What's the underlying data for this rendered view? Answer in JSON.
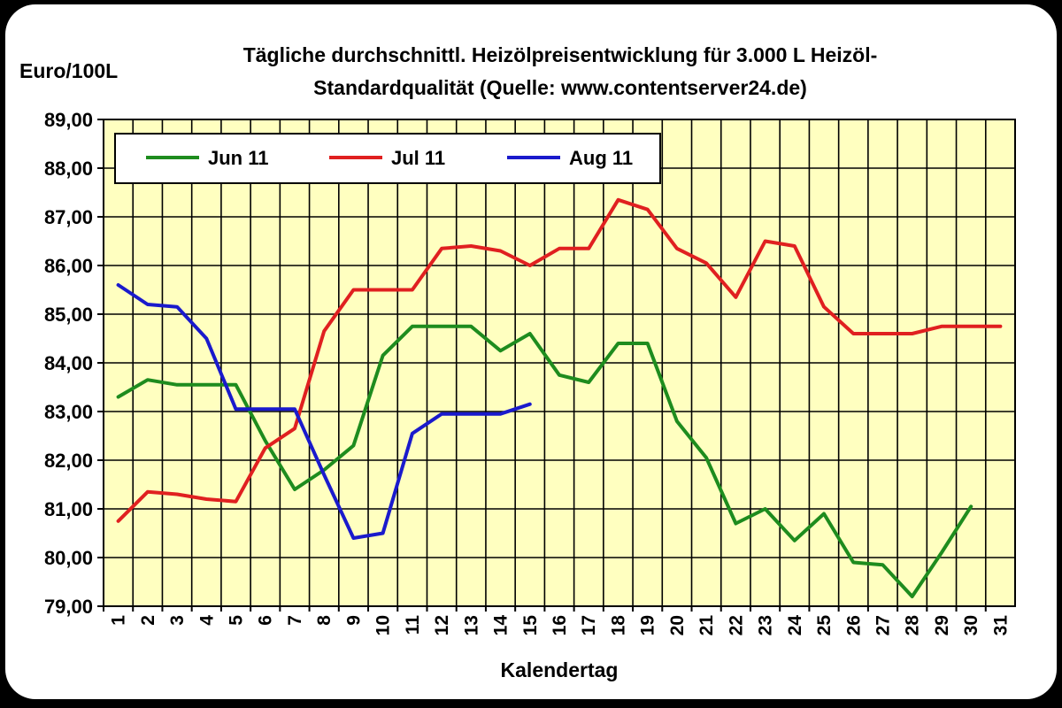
{
  "chart_data": {
    "type": "line",
    "title_line1": "Tägliche durchschnittl. Heizölpreisentwicklung für 3.000 L Heizöl-",
    "title_line2": "Standardqualität (Quelle: www.contentserver24.de)",
    "ylabel": "Euro/100L",
    "xlabel": "Kalendertag",
    "ylim": [
      79,
      89
    ],
    "ytick_labels": [
      "89,00",
      "88,00",
      "87,00",
      "86,00",
      "85,00",
      "84,00",
      "83,00",
      "82,00",
      "81,00",
      "80,00",
      "79,00"
    ],
    "categories": [
      "1",
      "2",
      "3",
      "4",
      "5",
      "6",
      "7",
      "8",
      "9",
      "10",
      "11",
      "12",
      "13",
      "14",
      "15",
      "16",
      "17",
      "18",
      "19",
      "20",
      "21",
      "22",
      "23",
      "24",
      "25",
      "26",
      "27",
      "28",
      "29",
      "30",
      "31"
    ],
    "grid": true,
    "legend_position": "top-left",
    "colors": {
      "plot_background": "#FFFFC0",
      "frame_background": "#FFFFFF",
      "outer_background": "#000000",
      "grid": "#000000"
    },
    "series": [
      {
        "name": "Jun 11",
        "color": "#1E8C1E",
        "values": [
          83.3,
          83.65,
          83.55,
          83.55,
          83.55,
          82.4,
          81.4,
          81.8,
          82.3,
          84.15,
          84.75,
          84.75,
          84.75,
          84.25,
          84.6,
          83.75,
          83.6,
          84.4,
          84.4,
          82.8,
          82.05,
          80.7,
          81.0,
          80.35,
          80.9,
          79.9,
          79.85,
          79.2,
          80.1,
          81.05,
          null
        ]
      },
      {
        "name": "Jul 11",
        "color": "#E02020",
        "values": [
          80.75,
          81.35,
          81.3,
          81.2,
          81.15,
          82.25,
          82.65,
          84.65,
          85.5,
          85.5,
          85.5,
          86.35,
          86.4,
          86.3,
          86.0,
          86.35,
          86.35,
          87.35,
          87.15,
          86.35,
          86.05,
          85.35,
          86.5,
          86.4,
          85.15,
          84.6,
          84.6,
          84.6,
          84.75,
          84.75,
          84.75
        ]
      },
      {
        "name": "Aug 11",
        "color": "#1A1ACC",
        "values": [
          85.6,
          85.2,
          85.15,
          84.5,
          83.05,
          83.05,
          83.05,
          81.7,
          80.4,
          80.5,
          82.55,
          82.95,
          82.95,
          82.95,
          83.15,
          null,
          null,
          null,
          null,
          null,
          null,
          null,
          null,
          null,
          null,
          null,
          null,
          null,
          null,
          null,
          null
        ]
      }
    ]
  }
}
